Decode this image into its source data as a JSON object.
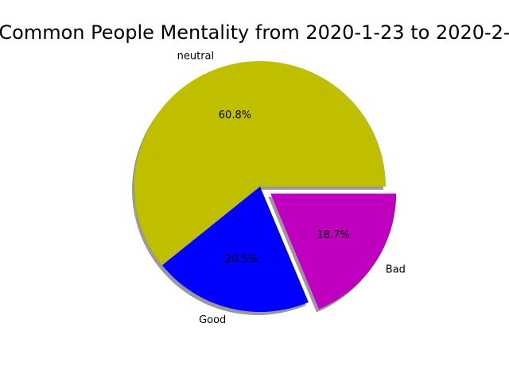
{
  "chart_data": {
    "type": "pie",
    "title": "Common People Mentality from 2020-1-23 to 2020-2-",
    "slices": [
      {
        "label": "neutral",
        "percent": 60.8,
        "percent_label": "60.8%",
        "color": "#bfbf00",
        "exploded": false
      },
      {
        "label": "Good",
        "percent": 20.5,
        "percent_label": "20.5%",
        "color": "#0000ff",
        "exploded": false
      },
      {
        "label": "Bad",
        "percent": 18.7,
        "percent_label": "18.7%",
        "color": "#bf00bf",
        "exploded": true
      }
    ],
    "start_angle_deg": 0,
    "direction": "counterclockwise",
    "shadow": true,
    "legend": "none"
  }
}
